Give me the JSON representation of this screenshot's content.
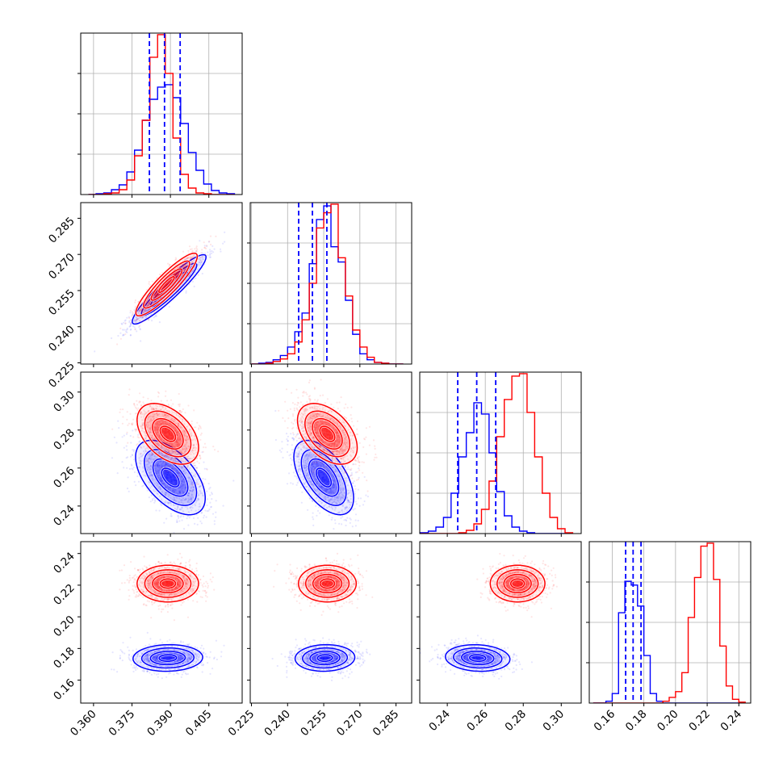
{
  "chart_data": {
    "type": "corner",
    "title": "",
    "grid": true,
    "series": [
      {
        "color": "#0000ff"
      },
      {
        "color": "#ff0000"
      }
    ],
    "dimensions": [
      {
        "index": 0,
        "range": [
          0.355,
          0.418
        ],
        "ticks": [
          0.36,
          0.375,
          0.39,
          0.405
        ],
        "tick_labels": [
          "0.360",
          "0.375",
          "0.390",
          "0.405"
        ]
      },
      {
        "index": 1,
        "range": [
          0.2245,
          0.2915
        ],
        "ticks": [
          0.225,
          0.24,
          0.255,
          0.27,
          0.285
        ],
        "tick_labels": [
          "0.225",
          "0.240",
          "0.255",
          "0.270",
          "0.285"
        ]
      },
      {
        "index": 2,
        "range": [
          0.2255,
          0.3105
        ],
        "ticks": [
          0.24,
          0.26,
          0.28,
          0.3
        ],
        "tick_labels": [
          "0.24",
          "0.26",
          "0.28",
          "0.30"
        ]
      },
      {
        "index": 3,
        "range": [
          0.1455,
          0.2475
        ],
        "ticks": [
          0.16,
          0.18,
          0.2,
          0.22,
          0.24
        ],
        "tick_labels": [
          "0.16",
          "0.18",
          "0.20",
          "0.22",
          "0.24"
        ]
      }
    ],
    "histograms": [
      {
        "dim": 0,
        "bin_edges": [
          0.358,
          0.361,
          0.364,
          0.367,
          0.37,
          0.373,
          0.376,
          0.379,
          0.382,
          0.385,
          0.388,
          0.391,
          0.394,
          0.397,
          0.4,
          0.403,
          0.406,
          0.409,
          0.412,
          0.415
        ],
        "blue": [
          0,
          1,
          2,
          6,
          12,
          28,
          55,
          92,
          118,
          133,
          136,
          120,
          88,
          52,
          30,
          13,
          5,
          2,
          1
        ],
        "red": [
          0,
          0,
          1,
          2,
          6,
          18,
          48,
          92,
          170,
          198,
          150,
          70,
          25,
          8,
          2,
          1,
          0,
          0,
          0
        ],
        "quantiles_blue": [
          0.3818,
          0.3877,
          0.3938
        ]
      },
      {
        "dim": 1,
        "bin_edges": [
          0.225,
          0.228,
          0.231,
          0.234,
          0.237,
          0.24,
          0.243,
          0.246,
          0.249,
          0.252,
          0.255,
          0.258,
          0.261,
          0.264,
          0.267,
          0.27,
          0.273,
          0.276,
          0.279,
          0.282,
          0.285,
          0.288
        ],
        "blue": [
          0,
          1,
          2,
          5,
          10,
          20,
          38,
          60,
          118,
          170,
          186,
          138,
          120,
          75,
          35,
          12,
          5,
          2,
          1,
          0,
          0
        ],
        "red": [
          0,
          0,
          1,
          3,
          6,
          12,
          26,
          52,
          95,
          160,
          178,
          188,
          125,
          80,
          40,
          20,
          8,
          2,
          1,
          0,
          0
        ],
        "quantiles_blue": [
          0.2446,
          0.2503,
          0.2563
        ]
      },
      {
        "dim": 2,
        "bin_edges": [
          0.226,
          0.23,
          0.234,
          0.238,
          0.242,
          0.246,
          0.25,
          0.254,
          0.258,
          0.262,
          0.266,
          0.27,
          0.274,
          0.278,
          0.282,
          0.286,
          0.29,
          0.294,
          0.298,
          0.302,
          0.306
        ],
        "blue": [
          1,
          3,
          8,
          20,
          50,
          95,
          125,
          162,
          148,
          100,
          52,
          22,
          8,
          3,
          1,
          0,
          0,
          0,
          0,
          0
        ],
        "red": [
          0,
          0,
          0,
          0,
          0,
          1,
          4,
          12,
          30,
          65,
          120,
          166,
          195,
          198,
          150,
          95,
          50,
          20,
          6,
          1
        ],
        "quantiles_blue": [
          0.2455,
          0.2555,
          0.2655
        ]
      },
      {
        "dim": 3,
        "bin_edges": [
          0.148,
          0.152,
          0.156,
          0.16,
          0.164,
          0.168,
          0.172,
          0.176,
          0.18,
          0.184,
          0.188,
          0.192,
          0.196,
          0.2,
          0.204,
          0.208,
          0.212,
          0.216,
          0.22,
          0.224,
          0.228,
          0.232,
          0.236,
          0.24,
          0.244
        ],
        "blue": [
          0,
          0,
          2,
          10,
          95,
          128,
          124,
          102,
          50,
          10,
          2,
          0,
          0,
          0,
          0,
          0,
          0,
          0,
          0,
          0,
          0,
          0,
          0,
          0
        ],
        "red": [
          0,
          0,
          0,
          0,
          0,
          0,
          0,
          0,
          0,
          0,
          0,
          2,
          6,
          12,
          32,
          90,
          132,
          165,
          168,
          130,
          60,
          18,
          4,
          1
        ],
        "quantiles_blue": [
          0.1685,
          0.1732,
          0.1782
        ]
      }
    ],
    "pairs": [
      {
        "x_dim": 0,
        "y_dim": 1,
        "blue": {
          "mean": [
            0.3895,
            0.2555
          ],
          "sd": [
            0.0072,
            0.0072
          ],
          "corr": 0.93,
          "n": 1100
        },
        "red": {
          "mean": [
            0.3885,
            0.2575
          ],
          "sd": [
            0.006,
            0.0065
          ],
          "corr": 0.9,
          "n": 1100
        }
      },
      {
        "x_dim": 0,
        "y_dim": 2,
        "blue": {
          "mean": [
            0.39,
            0.255
          ],
          "sd": [
            0.0068,
            0.0098
          ],
          "corr": -0.55,
          "n": 1300
        },
        "red": {
          "mean": [
            0.389,
            0.278
          ],
          "sd": [
            0.006,
            0.008
          ],
          "corr": -0.45,
          "n": 1300
        }
      },
      {
        "x_dim": 1,
        "y_dim": 2,
        "blue": {
          "mean": [
            0.255,
            0.255
          ],
          "sd": [
            0.0062,
            0.0098
          ],
          "corr": -0.55,
          "n": 1300
        },
        "red": {
          "mean": [
            0.2565,
            0.278
          ],
          "sd": [
            0.0062,
            0.008
          ],
          "corr": -0.45,
          "n": 1300
        }
      },
      {
        "x_dim": 0,
        "y_dim": 3,
        "blue": {
          "mean": [
            0.389,
            0.174
          ],
          "sd": [
            0.0068,
            0.0042
          ],
          "corr": 0.05,
          "n": 1300
        },
        "red": {
          "mean": [
            0.389,
            0.221
          ],
          "sd": [
            0.006,
            0.0058
          ],
          "corr": 0.0,
          "n": 1300
        }
      },
      {
        "x_dim": 1,
        "y_dim": 3,
        "blue": {
          "mean": [
            0.2555,
            0.174
          ],
          "sd": [
            0.0062,
            0.0042
          ],
          "corr": 0.05,
          "n": 1300
        },
        "red": {
          "mean": [
            0.2565,
            0.221
          ],
          "sd": [
            0.006,
            0.0058
          ],
          "corr": 0.0,
          "n": 1300
        }
      },
      {
        "x_dim": 2,
        "y_dim": 3,
        "blue": {
          "mean": [
            0.256,
            0.174
          ],
          "sd": [
            0.0085,
            0.0042
          ],
          "corr": -0.1,
          "n": 1300
        },
        "red": {
          "mean": [
            0.277,
            0.221
          ],
          "sd": [
            0.0072,
            0.0058
          ],
          "corr": 0.0,
          "n": 1300
        }
      }
    ]
  }
}
